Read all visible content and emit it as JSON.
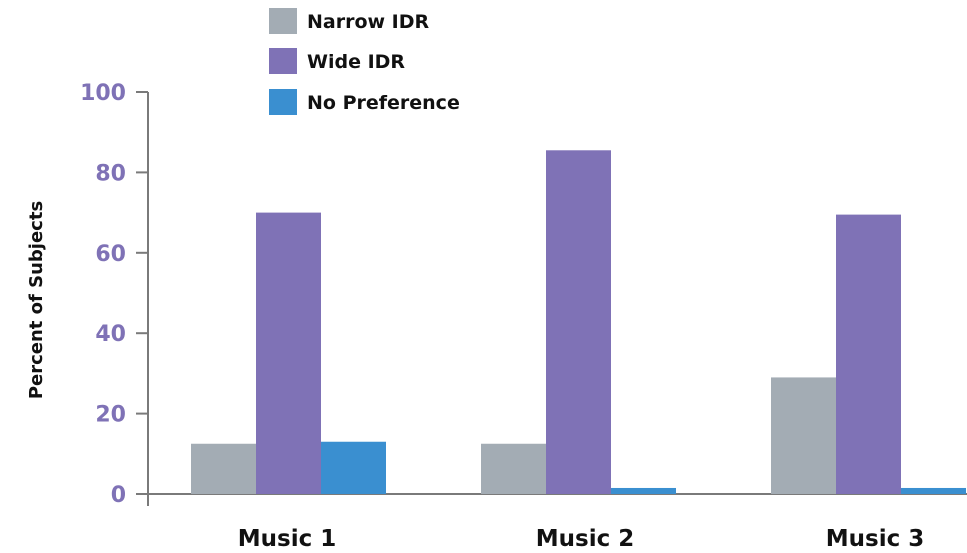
{
  "chart_data": {
    "type": "bar",
    "categories": [
      "Music 1",
      "Music 2",
      "Music 3"
    ],
    "series": [
      {
        "name": "Narrow IDR",
        "color": "#a3acb4",
        "values": [
          12.5,
          12.5,
          29
        ]
      },
      {
        "name": "Wide IDR",
        "color": "#7f72b6",
        "values": [
          70,
          85.5,
          69.5
        ]
      },
      {
        "name": "No Preference",
        "color": "#3a8fd0",
        "values": [
          13,
          1.5,
          1.5
        ]
      }
    ],
    "xlabel": "",
    "ylabel": "Percent of Subjects",
    "ylim": [
      0,
      100
    ],
    "yticks": [
      0,
      20,
      40,
      60,
      80,
      100
    ],
    "tick_color": "#7f72b6",
    "grid": false,
    "legend_position": "top-center"
  }
}
